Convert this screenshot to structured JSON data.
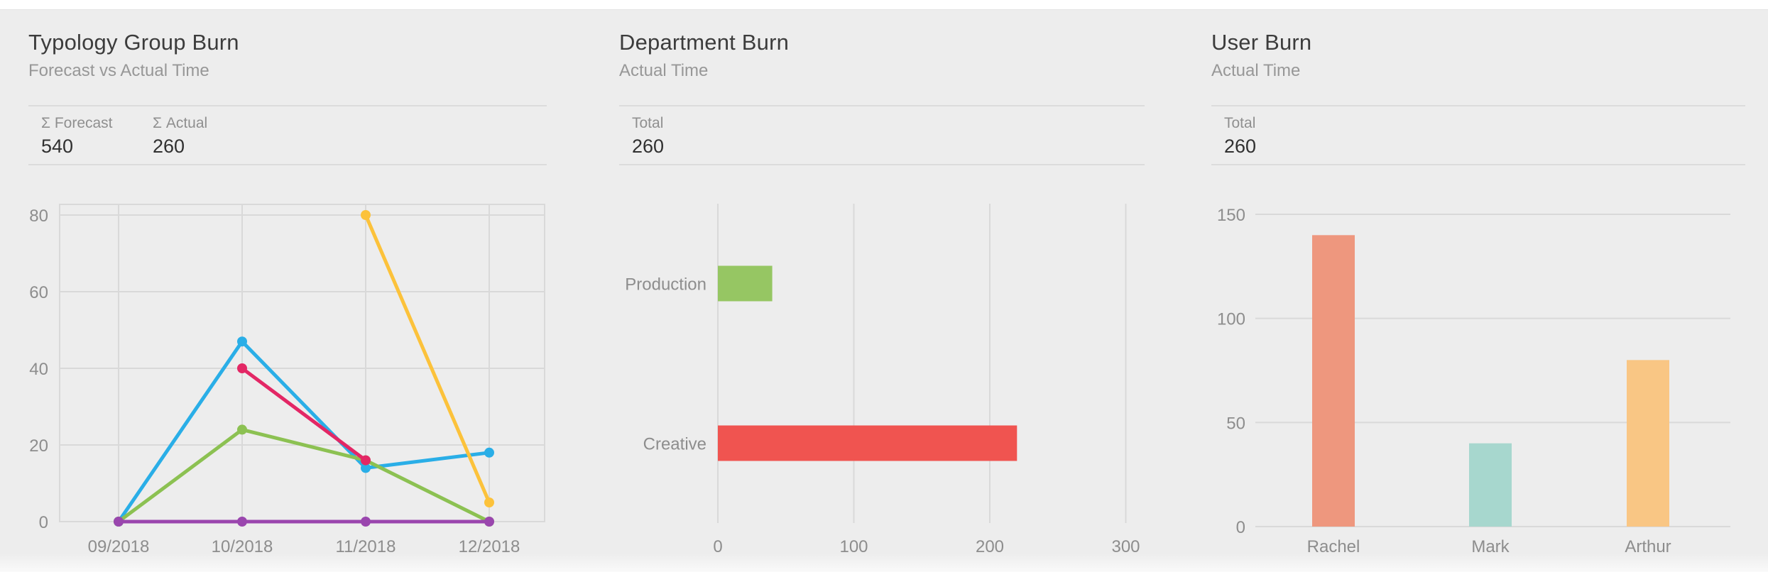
{
  "page": {
    "background_color": "#ededed",
    "topbar_color": "#ffffff"
  },
  "panels": [
    {
      "title": "Typology Group Burn",
      "subtitle": "Forecast vs Actual Time",
      "stats": [
        {
          "label": "Σ Forecast",
          "value": "540"
        },
        {
          "label": "Σ Actual",
          "value": "260"
        }
      ]
    },
    {
      "title": "Department Burn",
      "subtitle": "Actual Time",
      "stats": [
        {
          "label": "Total",
          "value": "260"
        }
      ]
    },
    {
      "title": "User Burn",
      "subtitle": "Actual Time",
      "stats": [
        {
          "label": "Total",
          "value": "260"
        }
      ]
    }
  ],
  "chart_data": [
    {
      "type": "line",
      "title": "Typology Group Burn",
      "x": [
        "09/2018",
        "10/2018",
        "11/2018",
        "12/2018"
      ],
      "series": [
        {
          "name": "blue",
          "color": "#2aaee7",
          "values": [
            0,
            47,
            14,
            18
          ]
        },
        {
          "name": "green",
          "color": "#8cc152",
          "values": [
            0,
            24,
            16,
            0
          ]
        },
        {
          "name": "pink",
          "color": "#e32765",
          "values": [
            null,
            40,
            16,
            null
          ]
        },
        {
          "name": "yellow",
          "color": "#fcc23b",
          "values": [
            null,
            null,
            80,
            5
          ]
        },
        {
          "name": "purple",
          "color": "#9a46ae",
          "values": [
            0,
            0,
            0,
            0
          ]
        }
      ],
      "ylim": [
        0,
        80
      ],
      "yticks": [
        0,
        20,
        40,
        60,
        80
      ],
      "grid": "both",
      "legend": "none",
      "gridline_color": "#d9d9d9"
    },
    {
      "type": "bar-horizontal",
      "title": "Department Burn",
      "categories": [
        "Production",
        "Creative"
      ],
      "values": [
        40,
        220
      ],
      "colors": [
        "#96c663",
        "#f05450"
      ],
      "xlim": [
        0,
        300
      ],
      "xticks": [
        0,
        100,
        200,
        300
      ],
      "grid": "vertical",
      "gridline_color": "#d9d9d9"
    },
    {
      "type": "bar",
      "title": "User Burn",
      "categories": [
        "Rachel",
        "Mark",
        "Arthur"
      ],
      "values": [
        140,
        40,
        80
      ],
      "colors": [
        "#ee977e",
        "#a7d7ce",
        "#f9c684"
      ],
      "ylim": [
        0,
        150
      ],
      "yticks": [
        0,
        50,
        100,
        150
      ],
      "grid": "horizontal",
      "gridline_color": "#d9d9d9"
    }
  ]
}
